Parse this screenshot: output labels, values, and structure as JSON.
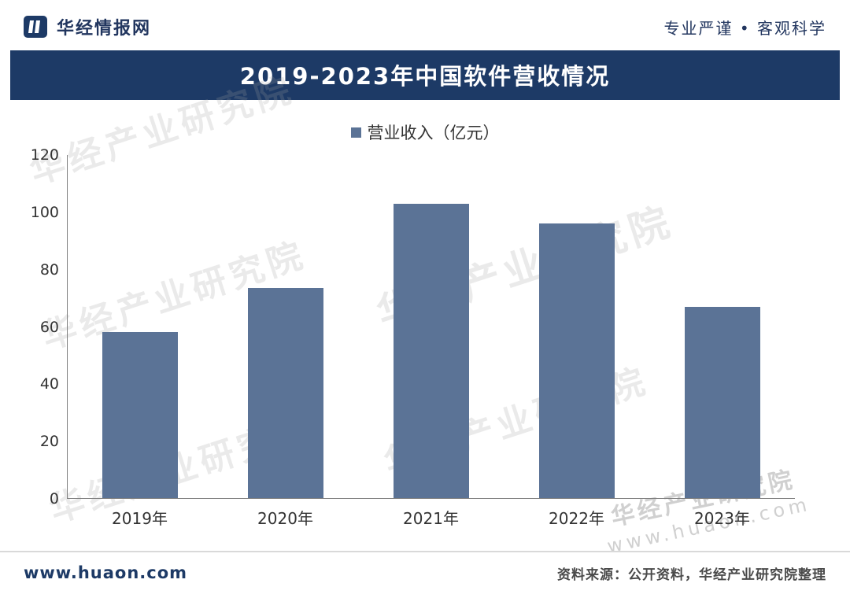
{
  "header": {
    "brand": "华经情报网",
    "tagline": "专业严谨 • 客观科学"
  },
  "banner": {
    "title": "2019-2023年中国软件营收情况"
  },
  "legend": {
    "label": "营业收入（亿元）"
  },
  "chart_data": {
    "type": "bar",
    "title": "2019-2023年中国软件营收情况",
    "series_name": "营业收入（亿元）",
    "categories": [
      "2019年",
      "2020年",
      "2021年",
      "2022年",
      "2023年"
    ],
    "values": [
      58,
      73.5,
      103,
      96,
      67
    ],
    "ylim": [
      0,
      120
    ],
    "yticks": [
      0,
      20,
      40,
      60,
      80,
      100,
      120
    ],
    "bar_color": "#5b7396",
    "grid": false,
    "legend_position": "top"
  },
  "footer": {
    "site": "www.huaon.com",
    "source": "资料来源：公开资料，华经产业研究院整理"
  },
  "watermark": {
    "diagonal": "华经产业研究院",
    "corner_line1": "华经产业研究院",
    "corner_line2": "www.huaon.com"
  },
  "colors": {
    "banner_bg": "#1d3a66",
    "bar": "#5b7396",
    "brand_text": "#22365f"
  }
}
